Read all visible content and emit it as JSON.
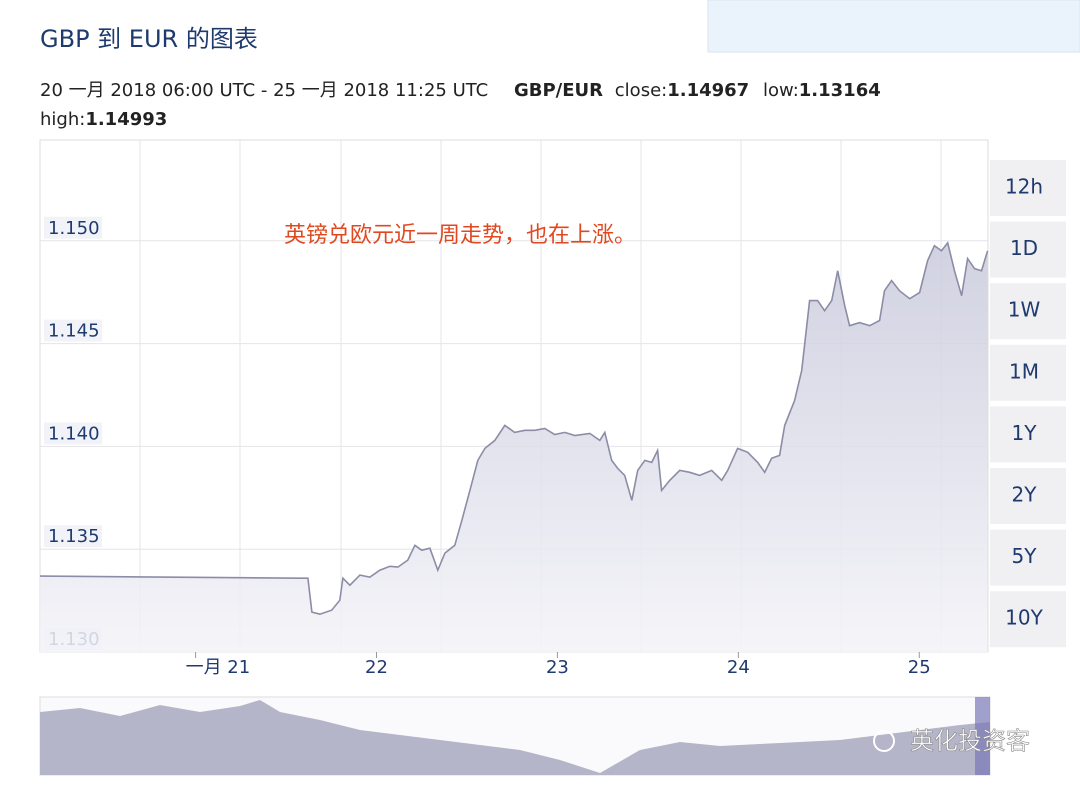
{
  "chart_data": {
    "type": "line",
    "title": "GBP 到 EUR 的图表",
    "range_text": "20 一月 2018 06:00 UTC - 25 一月 2018 11:25 UTC",
    "pair": "GBP/EUR",
    "stats": [
      {
        "label": "close:",
        "value": 1.14967
      },
      {
        "label": "low:",
        "value": 1.13164
      },
      {
        "label": "high:",
        "value": 1.14993
      }
    ],
    "annotation": "英镑兑欧元近一周走势，也在上涨。",
    "watermark": "英化投资客",
    "periods": [
      "12h",
      "1D",
      "1W",
      "1M",
      "1Y",
      "2Y",
      "5Y",
      "10Y"
    ],
    "color": "#8c8ca6",
    "grid": true,
    "xlim": [
      20.14,
      25.38
    ],
    "xticks": [
      {
        "value": 21,
        "label": "一月 21"
      },
      22,
      23,
      24,
      25
    ],
    "ylim": [
      1.13,
      1.1549
    ],
    "yticks": [
      {
        "value": 1.15,
        "label": "1.150"
      },
      1.145,
      {
        "value": 1.14,
        "label": "1.140"
      },
      1.135,
      {
        "value": 1.13,
        "label": "1.130"
      }
    ],
    "x": [
      20.14,
      21.576,
      21.621,
      21.643,
      21.687,
      21.753,
      21.797,
      21.814,
      21.853,
      21.908,
      21.963,
      22.018,
      22.074,
      22.118,
      22.173,
      22.212,
      22.25,
      22.295,
      22.339,
      22.378,
      22.433,
      22.472,
      22.516,
      22.56,
      22.599,
      22.654,
      22.709,
      22.764,
      22.82,
      22.875,
      22.93,
      22.985,
      23.041,
      23.096,
      23.179,
      23.234,
      23.262,
      23.3,
      23.333,
      23.372,
      23.411,
      23.444,
      23.483,
      23.521,
      23.554,
      23.576,
      23.621,
      23.676,
      23.731,
      23.786,
      23.853,
      23.908,
      23.941,
      23.996,
      24.052,
      24.107,
      24.146,
      24.184,
      24.228,
      24.256,
      24.311,
      24.35,
      24.394,
      24.438,
      24.477,
      24.516,
      24.549,
      24.588,
      24.615,
      24.67,
      24.726,
      24.781,
      24.808,
      24.847,
      24.891,
      24.947,
      25.002,
      25.046,
      25.084,
      25.123,
      25.157,
      25.195,
      25.234,
      25.267,
      25.306,
      25.344,
      25.378
    ],
    "values": [
      1.13369,
      1.13359,
      1.13359,
      1.13194,
      1.13184,
      1.13204,
      1.13252,
      1.13359,
      1.13325,
      1.13374,
      1.13364,
      1.13398,
      1.13417,
      1.13413,
      1.13447,
      1.13519,
      1.13495,
      1.13505,
      1.13398,
      1.13481,
      1.13519,
      1.13641,
      1.13786,
      1.13932,
      1.1399,
      1.14029,
      1.14102,
      1.14068,
      1.14078,
      1.14078,
      1.14087,
      1.14058,
      1.14068,
      1.14053,
      1.14063,
      1.14029,
      1.14068,
      1.13932,
      1.13893,
      1.13859,
      1.13738,
      1.13883,
      1.13932,
      1.13922,
      1.1398,
      1.13786,
      1.13835,
      1.13883,
      1.13874,
      1.13859,
      1.13883,
      1.13835,
      1.13883,
      1.1399,
      1.13971,
      1.13922,
      1.13874,
      1.13942,
      1.13956,
      1.14102,
      1.14223,
      1.14369,
      1.14709,
      1.14709,
      1.1466,
      1.14709,
      1.14854,
      1.14684,
      1.14587,
      1.14602,
      1.14587,
      1.14612,
      1.14757,
      1.14806,
      1.14757,
      1.14718,
      1.14748,
      1.14903,
      1.14976,
      1.14951,
      1.1499,
      1.14854,
      1.14733,
      1.14913,
      1.14864,
      1.14854,
      1.14951
    ]
  }
}
